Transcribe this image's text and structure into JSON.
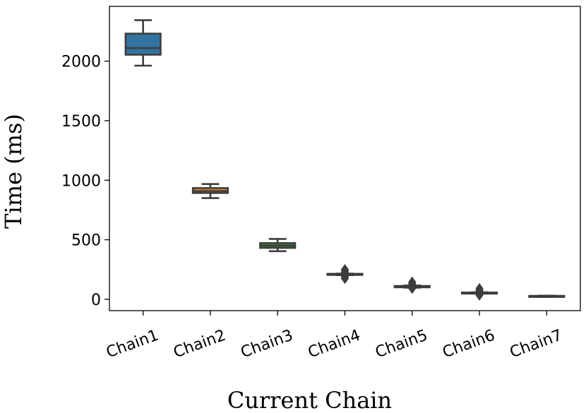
{
  "chart_data": {
    "type": "box",
    "xlabel": "Current Chain",
    "ylabel": "Time (ms)",
    "ylim": [
      -95,
      2460
    ],
    "yticks": [
      0,
      500,
      1000,
      1500,
      2000
    ],
    "categories": [
      "Chain1",
      "Chain2",
      "Chain3",
      "Chain4",
      "Chain5",
      "Chain6",
      "Chain7"
    ],
    "boxes": [
      {
        "category": "Chain1",
        "whisker_low": 1962,
        "q1": 2054,
        "median": 2110,
        "q3": 2231,
        "whisker_high": 2344,
        "outliers": [],
        "color": "#3274a1"
      },
      {
        "category": "Chain2",
        "whisker_low": 850,
        "q1": 893,
        "median": 909,
        "q3": 934,
        "whisker_high": 968,
        "outliers": [],
        "color": "#e1812c"
      },
      {
        "category": "Chain3",
        "whisker_low": 404,
        "q1": 432,
        "median": 451,
        "q3": 472,
        "whisker_high": 507,
        "outliers": [],
        "color": "#3a923a"
      },
      {
        "category": "Chain4",
        "whisker_low": 203,
        "q1": 205,
        "median": 209,
        "q3": 214,
        "whisker_high": 216,
        "outliers": [
          175,
          185,
          195,
          228,
          240,
          250
        ],
        "color": "#c03d3e"
      },
      {
        "category": "Chain5",
        "whisker_low": 98,
        "q1": 101,
        "median": 106,
        "q3": 112,
        "whisker_high": 116,
        "outliers": [
          92,
          125,
          135,
          145
        ],
        "color": "#9372b2"
      },
      {
        "category": "Chain6",
        "whisker_low": 48,
        "q1": 50,
        "median": 53,
        "q3": 57,
        "whisker_high": 59,
        "outliers": [
          35,
          45,
          68,
          78,
          90
        ],
        "color": "#845b53"
      },
      {
        "category": "Chain7",
        "whisker_low": 22,
        "q1": 24,
        "median": 26,
        "q3": 29,
        "whisker_high": 31,
        "outliers": [],
        "color": "#d684bd"
      }
    ]
  }
}
